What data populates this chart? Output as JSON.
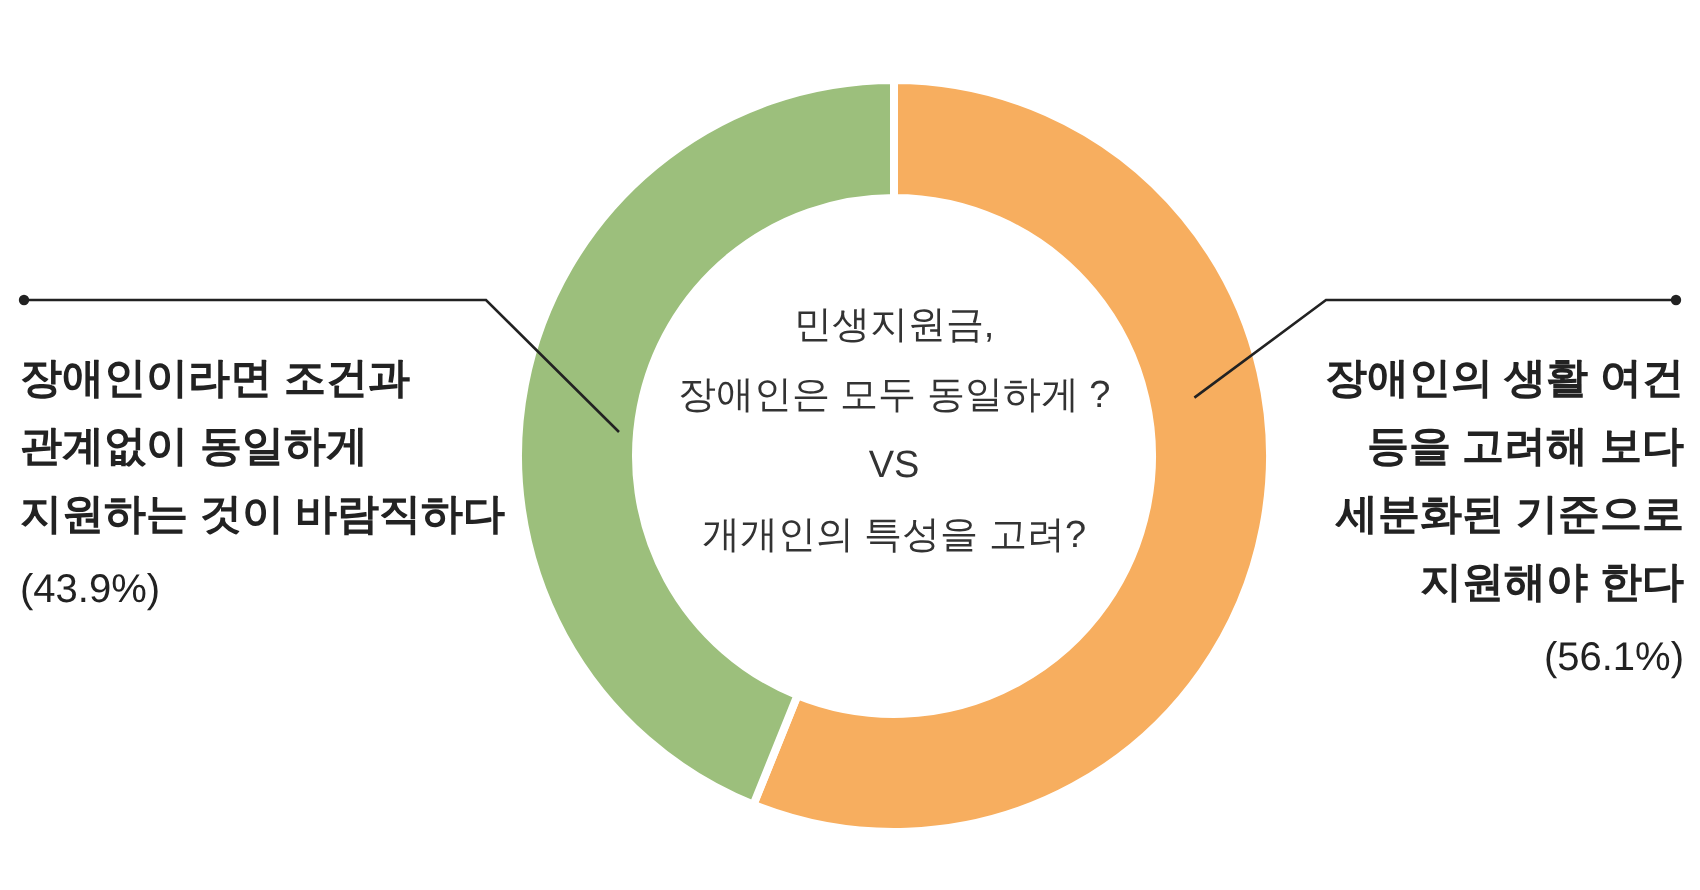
{
  "chart_data": {
    "type": "donut",
    "title": "민생지원금,\n장애인은 모두 동일하게 ?\nVS\n개개인의 특성을 고려?",
    "categories": [
      "장애인의 생활 여건\n등을 고려해 보다\n세분화된 기준으로\n지원해야 한다",
      "장애인이라면 조건과\n관계없이 동일하게\n지원하는 것이 바람직하다"
    ],
    "values": [
      56.1,
      43.9
    ],
    "colors": [
      "#f7ae5f",
      "#9cbf7c"
    ],
    "value_labels": [
      "(56.1%)",
      "(43.9%)"
    ]
  }
}
